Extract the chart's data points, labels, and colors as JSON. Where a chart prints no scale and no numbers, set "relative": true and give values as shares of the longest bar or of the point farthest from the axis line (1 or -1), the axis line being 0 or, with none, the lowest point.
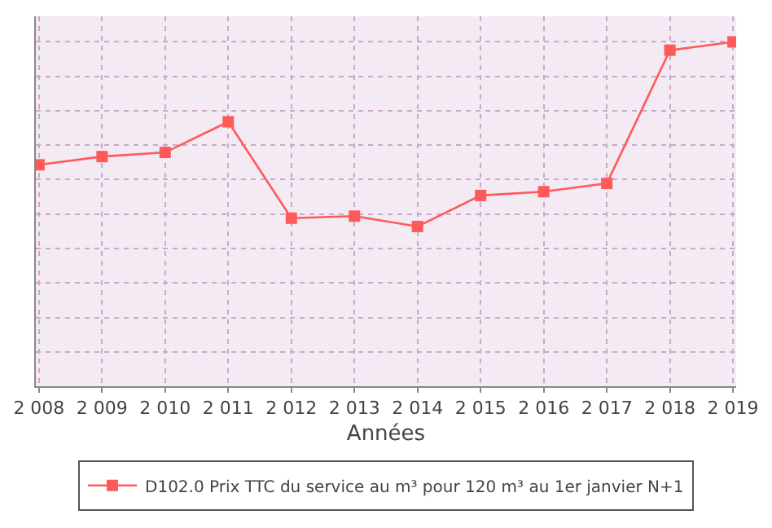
{
  "chart_data": {
    "type": "line",
    "relative": true,
    "xlabel": "Années",
    "categories": [
      "2 008",
      "2 009",
      "2 010",
      "2 011",
      "2 012",
      "2 013",
      "2 014",
      "2 015",
      "2 016",
      "2 017",
      "2 018",
      "2 019"
    ],
    "series": [
      {
        "name": "D102.0 Prix TTC du service au m³ pour 120 m³ au 1er janvier N+1",
        "color": "#ff5a5a",
        "values": [
          0.643,
          0.667,
          0.679,
          0.768,
          0.488,
          0.494,
          0.464,
          0.554,
          0.565,
          0.589,
          0.976,
          1
        ]
      }
    ],
    "marker": "square",
    "line_style": "solid",
    "grid": true,
    "legend": "bottom",
    "tick_labels": "x"
  }
}
